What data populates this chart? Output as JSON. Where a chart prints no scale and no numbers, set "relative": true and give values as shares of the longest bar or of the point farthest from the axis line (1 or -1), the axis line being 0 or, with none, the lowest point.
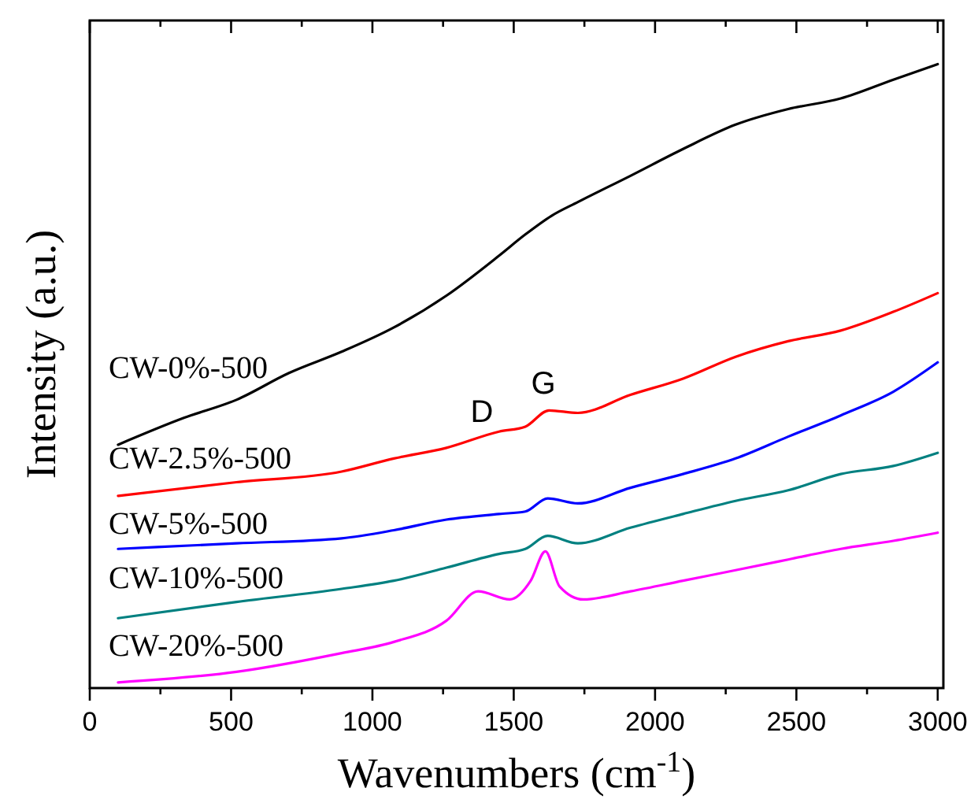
{
  "chart_data": {
    "type": "line",
    "relative": true,
    "xlabel": "Wavenumbers (cm$^{-1}$)",
    "ylabel": "Intensity (a.u.)",
    "xlim": [
      0,
      3020
    ],
    "xticks": [
      0,
      {
        "value": 250,
        "label": null
      },
      500,
      {
        "value": 750,
        "label": null
      },
      1000,
      {
        "value": 1250,
        "label": null
      },
      1500,
      {
        "value": 1750,
        "label": null
      },
      2000,
      {
        "value": 2250,
        "label": null
      },
      2500,
      {
        "value": 2750,
        "label": null
      },
      3000
    ],
    "tick_labels": "x",
    "grid": false,
    "marker": "none",
    "line_style": "solid",
    "annotations": [
      "D",
      "G"
    ],
    "series": [
      {
        "name": "CW-0%-500",
        "color": "#000000",
        "x": [
          100,
          333,
          519,
          705,
          891,
          1076,
          1262,
          1448,
          1541,
          1634,
          1727,
          1913,
          2099,
          2285,
          2471,
          2657,
          2843,
          3000
        ],
        "values": [
          0.39,
          0.433,
          0.462,
          0.505,
          0.539,
          0.578,
          0.629,
          0.693,
          0.727,
          0.757,
          0.779,
          0.821,
          0.864,
          0.903,
          0.928,
          0.945,
          0.975,
          1.0
        ]
      },
      {
        "name": "CW-2.5%-500",
        "color": "#ff0000",
        "x": [
          100,
          519,
          891,
          1076,
          1262,
          1448,
          1541,
          1625,
          1727,
          1913,
          2099,
          2285,
          2471,
          2657,
          2843,
          3000
        ],
        "values": [
          0.308,
          0.33,
          0.347,
          0.368,
          0.385,
          0.411,
          0.419,
          0.445,
          0.441,
          0.47,
          0.496,
          0.531,
          0.556,
          0.573,
          0.603,
          0.633
        ]
      },
      {
        "name": "CW-5%-500",
        "color": "#0000ff",
        "x": [
          100,
          519,
          891,
          1076,
          1262,
          1448,
          1541,
          1620,
          1727,
          1913,
          2099,
          2285,
          2471,
          2657,
          2843,
          3000
        ],
        "values": [
          0.223,
          0.232,
          0.24,
          0.253,
          0.27,
          0.279,
          0.283,
          0.304,
          0.296,
          0.321,
          0.343,
          0.368,
          0.403,
          0.437,
          0.475,
          0.522
        ]
      },
      {
        "name": "CW-10%-500",
        "color": "#008080",
        "x": [
          100,
          519,
          891,
          1076,
          1262,
          1448,
          1541,
          1620,
          1727,
          1913,
          2099,
          2285,
          2471,
          2657,
          2843,
          3000
        ],
        "values": [
          0.112,
          0.138,
          0.159,
          0.172,
          0.193,
          0.215,
          0.223,
          0.244,
          0.232,
          0.257,
          0.279,
          0.3,
          0.317,
          0.343,
          0.356,
          0.377
        ]
      },
      {
        "name": "CW-20%-500",
        "color": "#ff00ff",
        "x": [
          100,
          519,
          891,
          1076,
          1262,
          1374,
          1486,
          1560,
          1612,
          1662,
          1746,
          1913,
          2099,
          2285,
          2471,
          2657,
          2843,
          3000
        ],
        "values": [
          0.009,
          0.026,
          0.056,
          0.074,
          0.108,
          0.155,
          0.142,
          0.172,
          0.219,
          0.163,
          0.142,
          0.155,
          0.172,
          0.189,
          0.206,
          0.223,
          0.236,
          0.249
        ]
      }
    ]
  }
}
